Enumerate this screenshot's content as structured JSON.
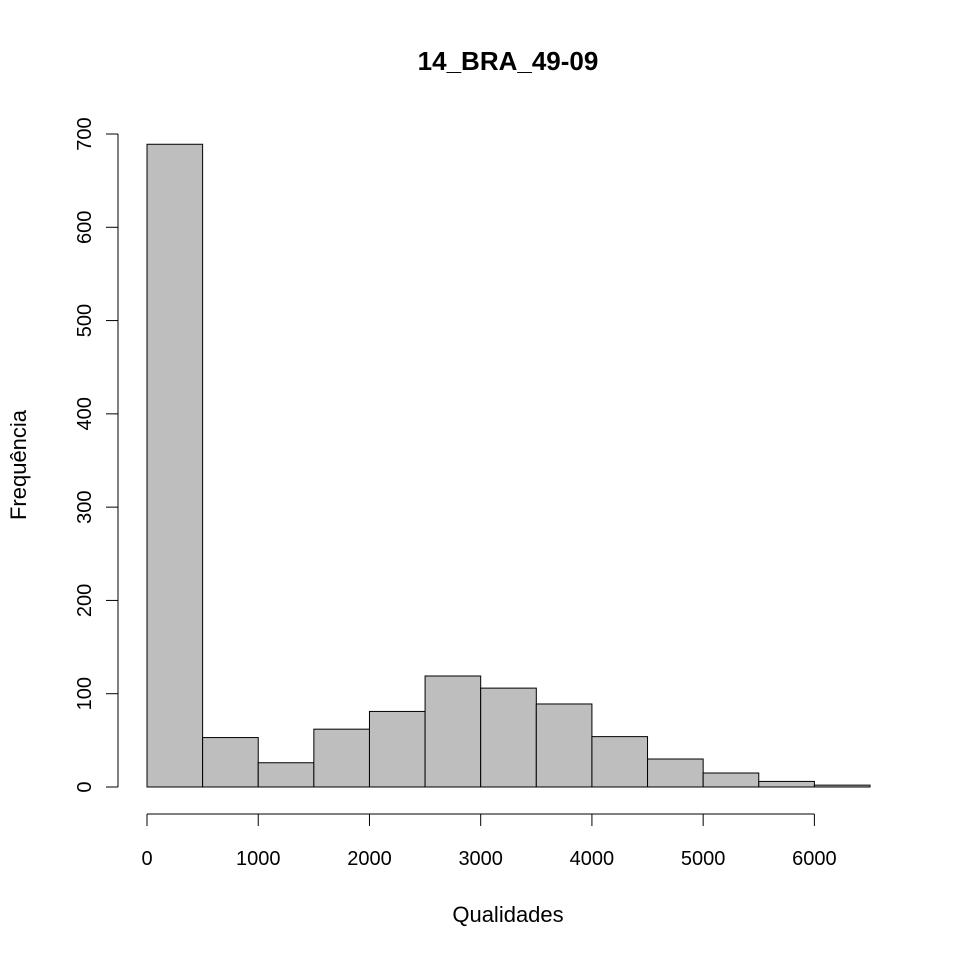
{
  "chart_data": {
    "type": "histogram",
    "title": "14_BRA_49-09",
    "xlabel": "Qualidades",
    "ylabel": "Frequência",
    "bin_edges": [
      0,
      500,
      1000,
      1500,
      2000,
      2500,
      3000,
      3500,
      4000,
      4500,
      5000,
      5500,
      6000,
      6500
    ],
    "values": [
      689,
      53,
      26,
      62,
      81,
      119,
      106,
      89,
      54,
      30,
      15,
      6,
      2
    ],
    "xlim": [
      0,
      6500
    ],
    "ylim": [
      0,
      700
    ],
    "x_ticks": [
      0,
      1000,
      2000,
      3000,
      4000,
      5000,
      6000
    ],
    "x_tick_labels": [
      "0",
      "1000",
      "2000",
      "3000",
      "4000",
      "5000",
      "6000"
    ],
    "y_ticks": [
      0,
      100,
      200,
      300,
      400,
      500,
      600,
      700
    ],
    "y_tick_labels": [
      "0",
      "100",
      "200",
      "300",
      "400",
      "500",
      "600",
      "700"
    ],
    "grid": false,
    "colors": {
      "bar_fill": "#bebebe",
      "bar_stroke": "#000000",
      "axis": "#000000"
    }
  }
}
